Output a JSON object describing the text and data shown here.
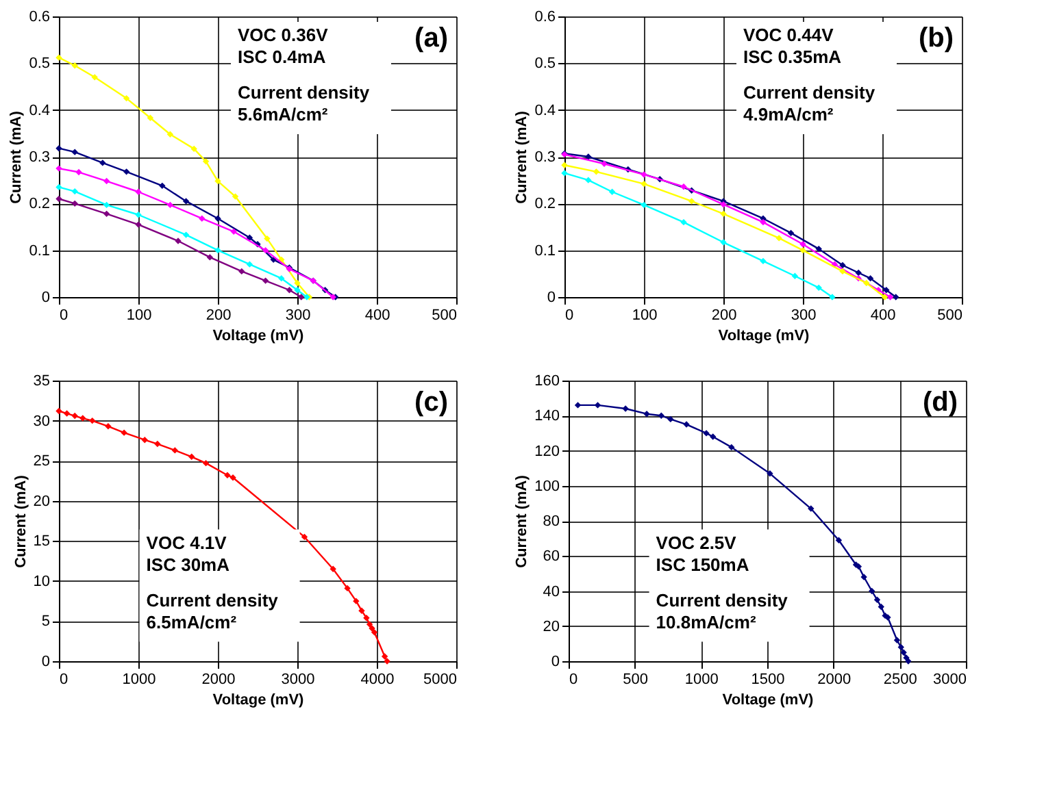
{
  "chart_data": [
    {
      "type": "line",
      "xlabel": "Voltage (mV)",
      "ylabel": "Current (mA)",
      "xlim": [
        0,
        500
      ],
      "xticks": [
        0,
        100,
        200,
        300,
        400,
        500
      ],
      "ylim": [
        0,
        0.6
      ],
      "yticks": [
        0,
        0.1,
        0.2,
        0.3,
        0.4,
        0.5,
        0.6
      ],
      "grid": true,
      "marker": "diamond",
      "line_style": "solid",
      "annotations": [
        "(a)",
        "VOC 0.36V",
        "ISC  0.4mA",
        "Current density",
        "5.6mA/cm²"
      ],
      "series": [
        {
          "color": "#ffff00",
          "x": [
            0,
            20,
            45,
            85,
            115,
            140,
            170,
            185,
            200,
            222,
            262,
            280,
            300,
            315
          ],
          "values": [
            0.512,
            0.495,
            0.47,
            0.425,
            0.383,
            0.348,
            0.317,
            0.29,
            0.248,
            0.215,
            0.125,
            0.08,
            0.03,
            0
          ]
        },
        {
          "color": "#000080",
          "x": [
            0,
            20,
            55,
            85,
            130,
            160,
            200,
            240,
            250,
            270,
            290,
            320,
            335,
            348
          ],
          "values": [
            0.318,
            0.31,
            0.287,
            0.268,
            0.238,
            0.205,
            0.168,
            0.127,
            0.113,
            0.08,
            0.063,
            0.035,
            0.015,
            0
          ]
        },
        {
          "color": "#ff00ff",
          "x": [
            0,
            25,
            60,
            100,
            140,
            180,
            220,
            260,
            290,
            320,
            345
          ],
          "values": [
            0.275,
            0.267,
            0.248,
            0.225,
            0.197,
            0.168,
            0.14,
            0.1,
            0.06,
            0.035,
            0
          ]
        },
        {
          "color": "#00ffff",
          "x": [
            0,
            20,
            60,
            100,
            160,
            200,
            240,
            280,
            300,
            312
          ],
          "values": [
            0.235,
            0.226,
            0.197,
            0.176,
            0.133,
            0.1,
            0.07,
            0.04,
            0.015,
            0
          ]
        },
        {
          "color": "#800080",
          "x": [
            0,
            20,
            60,
            100,
            150,
            190,
            230,
            260,
            290,
            305
          ],
          "values": [
            0.21,
            0.2,
            0.178,
            0.155,
            0.12,
            0.085,
            0.055,
            0.035,
            0.015,
            0
          ]
        }
      ]
    },
    {
      "type": "line",
      "xlabel": "Voltage (mV)",
      "ylabel": "Current (mA)",
      "xlim": [
        0,
        500
      ],
      "xticks": [
        0,
        100,
        200,
        300,
        400,
        500
      ],
      "ylim": [
        0,
        0.6
      ],
      "yticks": [
        0,
        0.1,
        0.2,
        0.3,
        0.4,
        0.5,
        0.6
      ],
      "grid": true,
      "marker": "diamond",
      "line_style": "solid",
      "annotations": [
        "(b)",
        "VOC 0.44V",
        "ISC  0.35mA",
        "Current density",
        "4.9mA/cm²"
      ],
      "series": [
        {
          "color": "#000080",
          "x": [
            0,
            30,
            80,
            120,
            160,
            200,
            250,
            285,
            320,
            350,
            370,
            385,
            405,
            417
          ],
          "values": [
            0.307,
            0.3,
            0.273,
            0.252,
            0.228,
            0.205,
            0.168,
            0.137,
            0.103,
            0.068,
            0.052,
            0.04,
            0.015,
            0
          ]
        },
        {
          "color": "#ff00ff",
          "x": [
            0,
            50,
            100,
            150,
            200,
            250,
            300,
            340,
            370,
            395,
            410
          ],
          "values": [
            0.305,
            0.285,
            0.262,
            0.236,
            0.198,
            0.16,
            0.113,
            0.07,
            0.04,
            0.015,
            0
          ]
        },
        {
          "color": "#ffff00",
          "x": [
            0,
            40,
            100,
            160,
            200,
            270,
            300,
            350,
            380,
            403
          ],
          "values": [
            0.282,
            0.268,
            0.242,
            0.205,
            0.178,
            0.126,
            0.1,
            0.055,
            0.03,
            0
          ]
        },
        {
          "color": "#00ffff",
          "x": [
            0,
            30,
            60,
            100,
            150,
            200,
            250,
            290,
            320,
            337
          ],
          "values": [
            0.265,
            0.25,
            0.225,
            0.197,
            0.16,
            0.117,
            0.077,
            0.045,
            0.02,
            0
          ]
        }
      ]
    },
    {
      "type": "line",
      "xlabel": "Voltage (mV)",
      "ylabel": "Current (mA)",
      "xlim": [
        0,
        5000
      ],
      "xticks": [
        0,
        1000,
        2000,
        3000,
        4000,
        5000
      ],
      "ylim": [
        0,
        35
      ],
      "yticks": [
        0,
        5,
        10,
        15,
        20,
        25,
        30,
        35
      ],
      "grid": true,
      "marker": "diamond",
      "line_style": "solid",
      "annotations": [
        "(c)",
        "VOC 4.1V",
        "ISC  30mA",
        "Current density",
        "6.5mA/cm²"
      ],
      "series": [
        {
          "color": "#ff0000",
          "x": [
            0,
            100,
            200,
            300,
            420,
            620,
            820,
            1080,
            1240,
            1460,
            1670,
            1850,
            2120,
            2190,
            3090,
            3450,
            3630,
            3740,
            3810,
            3870,
            3910,
            3940,
            3970,
            4100,
            4130
          ],
          "values": [
            31.2,
            30.9,
            30.6,
            30.3,
            30,
            29.3,
            28.5,
            27.6,
            27.1,
            26.3,
            25.5,
            24.7,
            23.2,
            22.9,
            15.5,
            11.5,
            9.1,
            7.5,
            6.3,
            5.4,
            4.6,
            4.1,
            3.6,
            0.6,
            0
          ]
        }
      ]
    },
    {
      "type": "line",
      "xlabel": "Voltage (mV)",
      "ylabel": "Current (mA)",
      "xlim": [
        0,
        3000
      ],
      "xticks": [
        0,
        500,
        1000,
        1500,
        2000,
        2500,
        3000
      ],
      "ylim": [
        0,
        160
      ],
      "yticks": [
        0,
        20,
        40,
        60,
        80,
        100,
        120,
        140,
        160
      ],
      "grid": true,
      "marker": "diamond",
      "line_style": "solid",
      "annotations": [
        "(d)",
        "VOC 2.5V",
        "ISC  150mA",
        "Current density",
        "10.8mA/cm²"
      ],
      "series": [
        {
          "color": "#000080",
          "x": [
            70,
            220,
            430,
            590,
            700,
            770,
            890,
            1040,
            1090,
            1230,
            1520,
            1830,
            2040,
            2170,
            2190,
            2230,
            2290,
            2330,
            2360,
            2390,
            2410,
            2480,
            2510,
            2530,
            2550,
            2565
          ],
          "values": [
            146,
            146,
            144,
            141,
            140,
            138,
            135,
            130,
            128,
            122,
            107,
            87,
            69,
            55,
            54,
            48,
            40,
            35,
            31,
            26,
            25,
            12,
            8,
            5,
            2,
            0
          ]
        }
      ]
    }
  ]
}
